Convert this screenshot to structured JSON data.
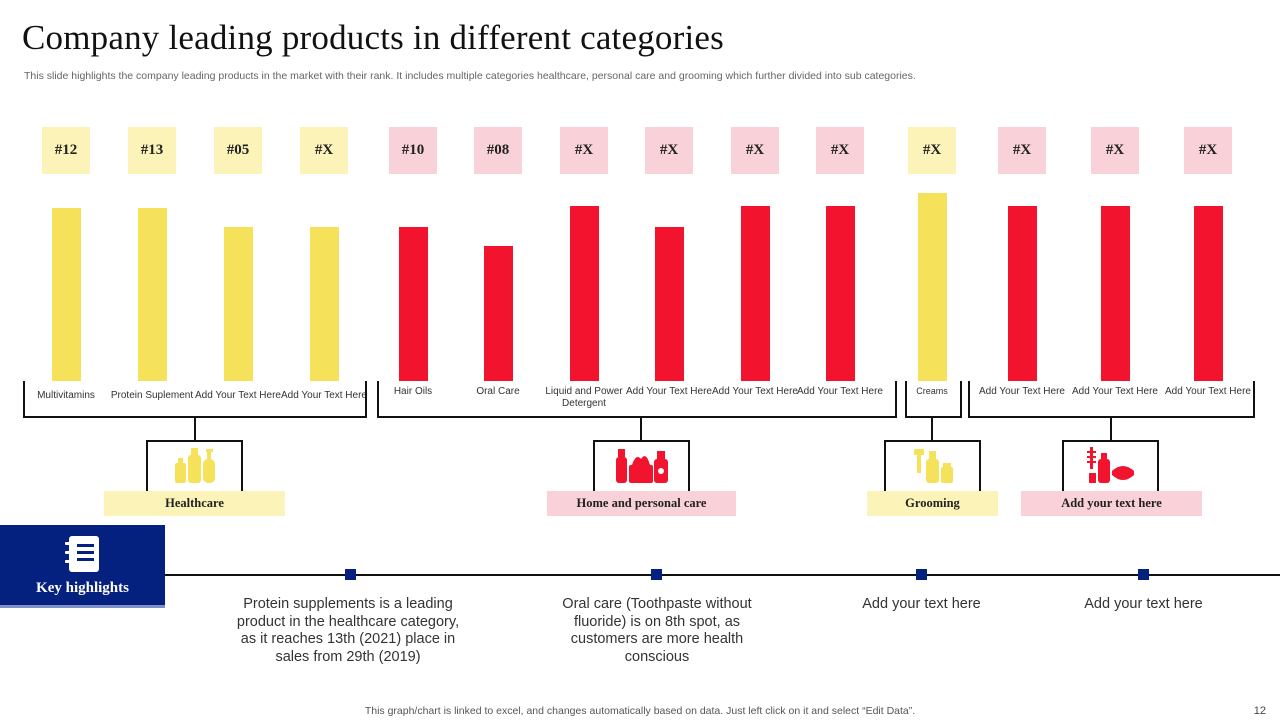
{
  "header": {
    "title": "Company leading products in different categories",
    "subtitle": "This slide highlights the company leading products in the market with their rank. It includes multiple categories healthcare, personal care and grooming which further divided into sub categories."
  },
  "colors": {
    "yellow_bar": "#f5e25a",
    "yellow_box": "#fbf3b8",
    "red_bar": "#f2142f",
    "pink_box": "#f9d1d8",
    "navy": "#05217f"
  },
  "chart_data": {
    "type": "bar",
    "title": "Company leading products in different categories",
    "xlabel": "",
    "ylabel": "",
    "ylim": [
      0,
      100
    ],
    "categories": [
      "Multivitamins",
      "Protein Suplement",
      "Add Your Text Here",
      "Add Your Text Here",
      "Hair Oils",
      "Oral Care",
      "Liquid and Power Detergent",
      "Add Your Text Here",
      "Add Your Text Here",
      "Add Your Text Here",
      "Creams",
      "Add Your Text Here",
      "Add Your Text Here",
      "Add Your Text Here"
    ],
    "values": [
      92,
      92,
      82,
      82,
      82,
      72,
      93,
      82,
      93,
      93,
      100,
      93,
      93,
      93
    ],
    "ranks": [
      "#12",
      "#13",
      "#05",
      "#X",
      "#10",
      "#08",
      "#X",
      "#X",
      "#X",
      "#X",
      "#X",
      "#X",
      "#X",
      "#X"
    ],
    "groups": [
      "Healthcare",
      "Healthcare",
      "Healthcare",
      "Healthcare",
      "Home and personal care",
      "Home and personal care",
      "Home and personal care",
      "Home and personal care",
      "Home and personal care",
      "Home and personal care",
      "Grooming",
      "Add your text here",
      "Add your text here",
      "Add your text here"
    ],
    "grid": false,
    "legend": "none"
  },
  "categories": [
    {
      "label": "Healthcare",
      "icon": "bottles-icon"
    },
    {
      "label": "Home and personal care",
      "icon": "cleaning-supplies-icon"
    },
    {
      "label": "Grooming",
      "icon": "grooming-kit-icon"
    },
    {
      "label": "Add your text here",
      "icon": "cosmetics-icon"
    }
  ],
  "key_highlights": {
    "label": "Key highlights",
    "icon": "notebook-icon",
    "items": [
      "Protein supplements is a leading product in the healthcare category, as it reaches 13th (2021) place in sales from 29th (2019)",
      "Oral care (Toothpaste without fluoride) is on 8th spot, as customers are more health conscious",
      "Add your text here",
      "Add your text here"
    ]
  },
  "footer": {
    "note": "This graph/chart is linked to excel,  and changes automatically based on data. Just left click on it and select “Edit Data”.",
    "page_number": "12"
  }
}
